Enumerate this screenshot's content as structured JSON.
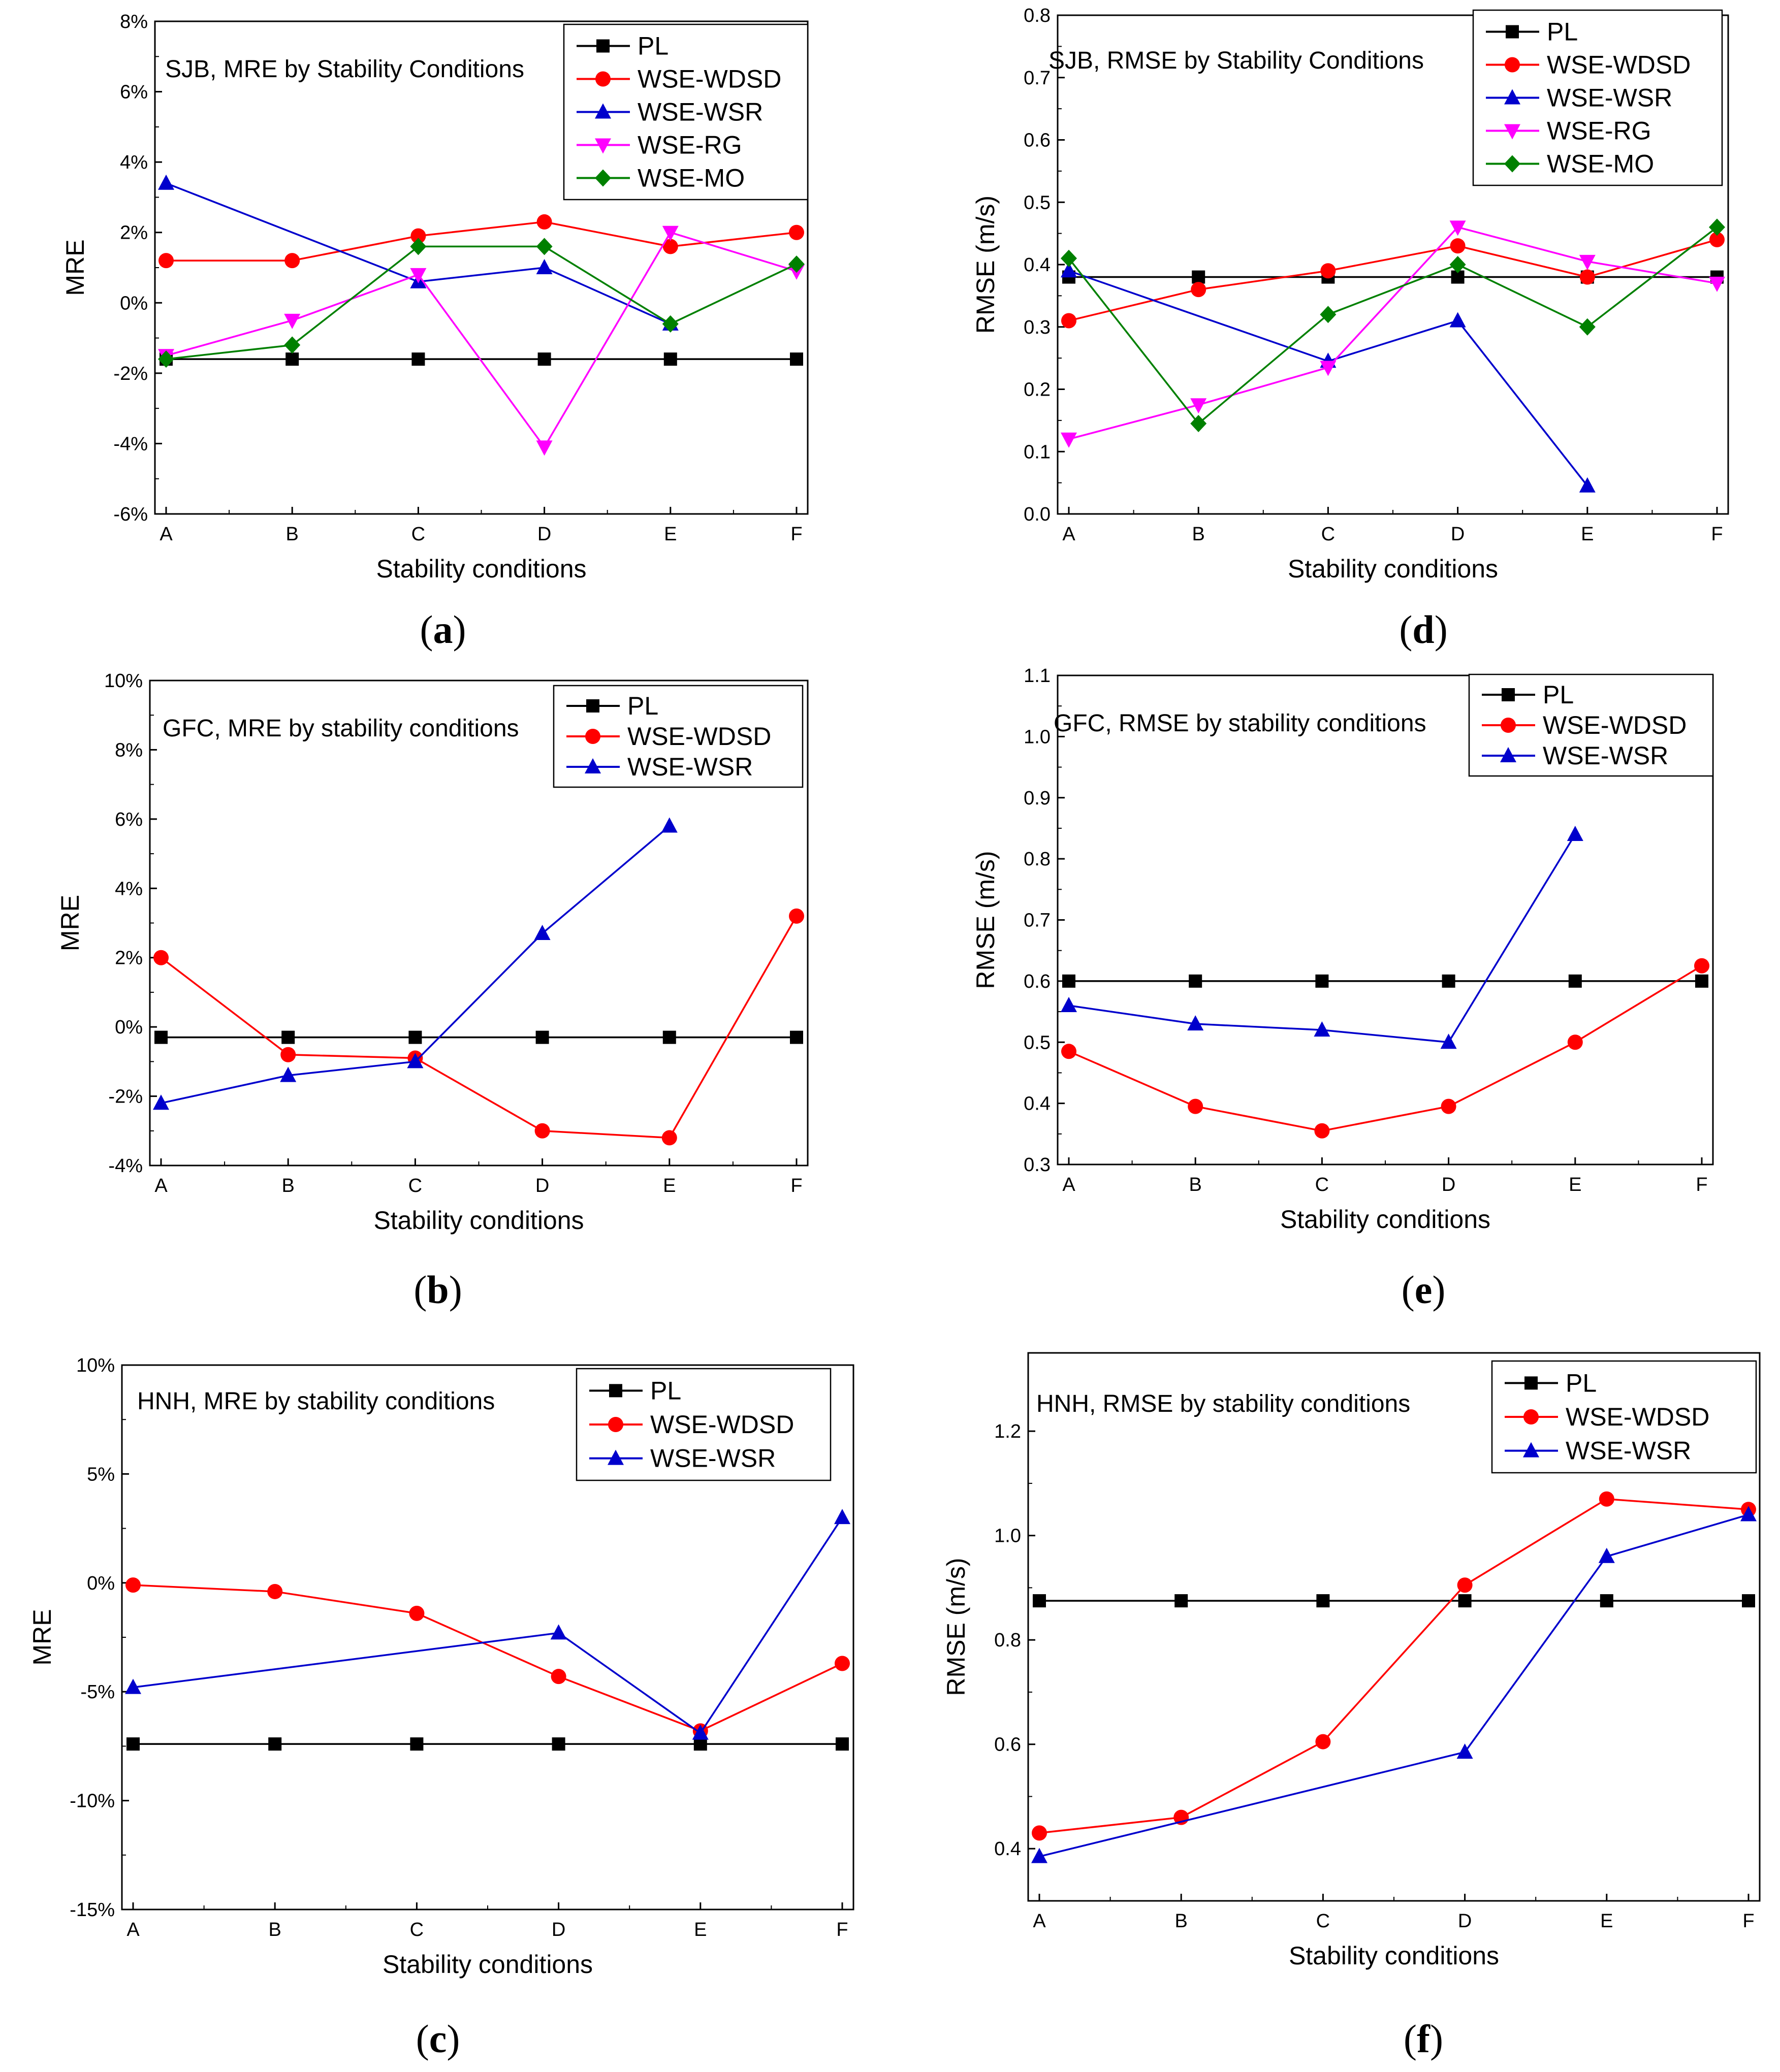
{
  "chart_data": [
    {
      "id": "a",
      "panel_label": "a",
      "type": "line",
      "title": "SJB, MRE by Stability Conditions",
      "xlabel": "Stability conditions",
      "ylabel": "MRE",
      "categories": [
        "A",
        "B",
        "C",
        "D",
        "E",
        "F"
      ],
      "ylim": [
        -6,
        8
      ],
      "yticks": [
        -6,
        -4,
        -2,
        0,
        2,
        4,
        6,
        8
      ],
      "ytick_labels": [
        "-6%",
        "-4%",
        "-2%",
        "0%",
        "2%",
        "4%",
        "6%",
        "8%"
      ],
      "legend_position": "top-right",
      "series": [
        {
          "name": "PL",
          "color": "#000000",
          "marker": "square",
          "values": [
            -1.6,
            -1.6,
            -1.6,
            -1.6,
            -1.6,
            -1.6
          ]
        },
        {
          "name": "WSE-WDSD",
          "color": "#ff0000",
          "marker": "circle",
          "values": [
            1.2,
            1.2,
            1.9,
            2.3,
            1.6,
            2.0
          ]
        },
        {
          "name": "WSE-WSR",
          "color": "#0000cc",
          "marker": "triangle-up",
          "values": [
            3.4,
            null,
            0.6,
            1.0,
            -0.6,
            null
          ]
        },
        {
          "name": "WSE-RG",
          "color": "#ff00ff",
          "marker": "triangle-down",
          "values": [
            -1.5,
            -0.5,
            0.8,
            -4.1,
            2.0,
            0.9
          ]
        },
        {
          "name": "WSE-MO",
          "color": "#008000",
          "marker": "diamond",
          "values": [
            -1.6,
            -1.2,
            1.6,
            1.6,
            -0.6,
            1.1
          ]
        }
      ]
    },
    {
      "id": "d",
      "panel_label": "d",
      "type": "line",
      "title": "SJB, RMSE by Stability Conditions",
      "xlabel": "Stability conditions",
      "ylabel": "RMSE (m/s)",
      "categories": [
        "A",
        "B",
        "C",
        "D",
        "E",
        "F"
      ],
      "ylim": [
        0,
        0.8
      ],
      "yticks": [
        0,
        0.1,
        0.2,
        0.3,
        0.4,
        0.5,
        0.6,
        0.7,
        0.8
      ],
      "ytick_labels": [
        "0.0",
        "0.1",
        "0.2",
        "0.3",
        "0.4",
        "0.5",
        "0.6",
        "0.7",
        "0.8"
      ],
      "legend_position": "top-right",
      "series": [
        {
          "name": "PL",
          "color": "#000000",
          "marker": "square",
          "values": [
            0.38,
            0.38,
            0.38,
            0.38,
            0.38,
            0.38
          ]
        },
        {
          "name": "WSE-WDSD",
          "color": "#ff0000",
          "marker": "circle",
          "values": [
            0.31,
            0.36,
            0.39,
            0.43,
            0.38,
            0.44
          ]
        },
        {
          "name": "WSE-WSR",
          "color": "#0000cc",
          "marker": "triangle-up",
          "values": [
            0.39,
            null,
            0.245,
            0.31,
            0.045,
            null
          ]
        },
        {
          "name": "WSE-RG",
          "color": "#ff00ff",
          "marker": "triangle-down",
          "values": [
            0.12,
            0.175,
            0.235,
            0.46,
            0.405,
            0.37
          ]
        },
        {
          "name": "WSE-MO",
          "color": "#008000",
          "marker": "diamond",
          "values": [
            0.41,
            0.145,
            0.32,
            0.4,
            0.3,
            0.46
          ]
        }
      ]
    },
    {
      "id": "b",
      "panel_label": "b",
      "type": "line",
      "title": "GFC, MRE by stability conditions",
      "xlabel": "Stability conditions",
      "ylabel": "MRE",
      "categories": [
        "A",
        "B",
        "C",
        "D",
        "E",
        "F"
      ],
      "ylim": [
        -4,
        10
      ],
      "yticks": [
        -4,
        -2,
        0,
        2,
        4,
        6,
        8,
        10
      ],
      "ytick_labels": [
        "-4%",
        "-2%",
        "0%",
        "2%",
        "4%",
        "6%",
        "8%",
        "10%"
      ],
      "legend_position": "top-right",
      "series": [
        {
          "name": "PL",
          "color": "#000000",
          "marker": "square",
          "values": [
            -0.3,
            -0.3,
            -0.3,
            -0.3,
            -0.3,
            -0.3
          ]
        },
        {
          "name": "WSE-WDSD",
          "color": "#ff0000",
          "marker": "circle",
          "values": [
            2.0,
            -0.8,
            -0.9,
            -3.0,
            -3.2,
            3.2
          ]
        },
        {
          "name": "WSE-WSR",
          "color": "#0000cc",
          "marker": "triangle-up",
          "values": [
            -2.2,
            -1.4,
            -1.0,
            2.7,
            5.8,
            null
          ]
        }
      ]
    },
    {
      "id": "e",
      "panel_label": "e",
      "type": "line",
      "title": "GFC, RMSE by stability conditions",
      "xlabel": "Stability conditions",
      "ylabel": "RMSE (m/s)",
      "categories": [
        "A",
        "B",
        "C",
        "D",
        "E",
        "F"
      ],
      "ylim": [
        0.3,
        1.1
      ],
      "yticks": [
        0.3,
        0.4,
        0.5,
        0.6,
        0.7,
        0.8,
        0.9,
        1.0,
        1.1
      ],
      "ytick_labels": [
        "0.3",
        "0.4",
        "0.5",
        "0.6",
        "0.7",
        "0.8",
        "0.9",
        "1.0",
        "1.1"
      ],
      "legend_position": "top-right",
      "series": [
        {
          "name": "PL",
          "color": "#000000",
          "marker": "square",
          "values": [
            0.6,
            0.6,
            0.6,
            0.6,
            0.6,
            0.6
          ]
        },
        {
          "name": "WSE-WDSD",
          "color": "#ff0000",
          "marker": "circle",
          "values": [
            0.485,
            0.395,
            0.355,
            0.395,
            0.5,
            0.625
          ]
        },
        {
          "name": "WSE-WSR",
          "color": "#0000cc",
          "marker": "triangle-up",
          "values": [
            0.56,
            0.53,
            0.52,
            0.5,
            0.84,
            null
          ]
        }
      ]
    },
    {
      "id": "c",
      "panel_label": "c",
      "type": "line",
      "title": "HNH, MRE by stability conditions",
      "xlabel": "Stability conditions",
      "ylabel": "MRE",
      "categories": [
        "A",
        "B",
        "C",
        "D",
        "E",
        "F"
      ],
      "ylim": [
        -15,
        10
      ],
      "yticks": [
        -15,
        -10,
        -5,
        0,
        5,
        10
      ],
      "ytick_labels": [
        "-15%",
        "-10%",
        "-5%",
        "0%",
        "5%",
        "10%"
      ],
      "legend_position": "top-right",
      "series": [
        {
          "name": "PL",
          "color": "#000000",
          "marker": "square",
          "values": [
            -7.4,
            -7.4,
            -7.4,
            -7.4,
            -7.4,
            -7.4
          ]
        },
        {
          "name": "WSE-WDSD",
          "color": "#ff0000",
          "marker": "circle",
          "values": [
            -0.1,
            -0.4,
            -1.4,
            -4.3,
            -6.8,
            -3.7
          ]
        },
        {
          "name": "WSE-WSR",
          "color": "#0000cc",
          "marker": "triangle-up",
          "values": [
            -4.8,
            null,
            null,
            -2.3,
            -6.9,
            3.0
          ]
        }
      ]
    },
    {
      "id": "f",
      "panel_label": "f",
      "type": "line",
      "title": "HNH, RMSE by stability conditions",
      "xlabel": "Stability conditions",
      "ylabel": "RMSE (m/s)",
      "categories": [
        "A",
        "B",
        "C",
        "D",
        "E",
        "F"
      ],
      "ylim": [
        0.3,
        1.35
      ],
      "yticks": [
        0.4,
        0.6,
        0.8,
        1.0,
        1.2
      ],
      "ytick_labels": [
        "0.4",
        "0.6",
        "0.8",
        "1.0",
        "1.2"
      ],
      "legend_position": "top-right",
      "series": [
        {
          "name": "PL",
          "color": "#000000",
          "marker": "square",
          "values": [
            0.875,
            0.875,
            0.875,
            0.875,
            0.875,
            0.875
          ]
        },
        {
          "name": "WSE-WDSD",
          "color": "#ff0000",
          "marker": "circle",
          "values": [
            0.43,
            0.46,
            0.605,
            0.905,
            1.07,
            1.05
          ]
        },
        {
          "name": "WSE-WSR",
          "color": "#0000cc",
          "marker": "triangle-up",
          "values": [
            0.385,
            null,
            null,
            0.585,
            0.96,
            1.04
          ]
        }
      ]
    }
  ]
}
